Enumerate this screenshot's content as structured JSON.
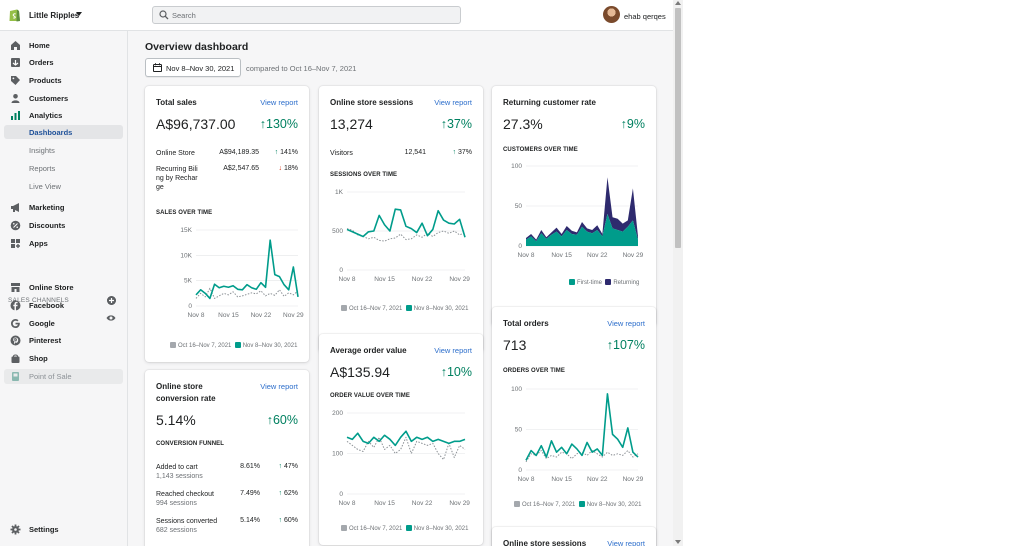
{
  "topbar": {
    "store_name": "Little Ripples",
    "search_placeholder": "Search",
    "user_name": "ehab qerqes"
  },
  "sidebar": {
    "items": [
      {
        "label": "Home",
        "icon": "home-icon"
      },
      {
        "label": "Orders",
        "icon": "orders-icon"
      },
      {
        "label": "Products",
        "icon": "tag-icon"
      },
      {
        "label": "Customers",
        "icon": "person-icon"
      },
      {
        "label": "Analytics",
        "icon": "bar-chart-icon"
      }
    ],
    "analytics_sub": [
      "Dashboards",
      "Insights",
      "Reports",
      "Live View"
    ],
    "items2": [
      {
        "label": "Marketing",
        "icon": "megaphone-icon"
      },
      {
        "label": "Discounts",
        "icon": "discount-icon"
      },
      {
        "label": "Apps",
        "icon": "apps-icon"
      }
    ],
    "channels_head": "SALES CHANNELS",
    "channels": [
      "Online Store",
      "Facebook",
      "Google",
      "Pinterest",
      "Shop",
      "Point of Sale"
    ],
    "settings": "Settings"
  },
  "main": {
    "title": "Overview dashboard",
    "date_range": "Nov 8–Nov 30, 2021",
    "compared": "compared to Oct 16–Nov 7, 2021",
    "view_report": "View report",
    "legend_prev": "Oct 16–Nov 7, 2021",
    "legend_curr": "Nov 8–Nov 30, 2021"
  },
  "colors": {
    "accent": "#008060",
    "teal": "#009c8b",
    "navy": "#2e2a6e",
    "link": "#2c6ecb",
    "down": "#d72c0d",
    "dotted": "#8c9196"
  },
  "cards": {
    "total_sales": {
      "title": "Total sales",
      "value": "A$96,737.00",
      "change": "130%",
      "rows": [
        {
          "label": "Online Store",
          "value": "A$94,189.35",
          "change": "141%",
          "dir": "up"
        },
        {
          "label": "Recurring Bili ng by Rechar ge",
          "value": "A$2,547.65",
          "change": "18%",
          "dir": "down"
        }
      ],
      "chart_title": "SALES OVER TIME"
    },
    "sessions": {
      "title": "Online store sessions",
      "value": "13,274",
      "change": "37%",
      "rows": [
        {
          "label": "Visitors",
          "value": "12,541",
          "change": "37%"
        }
      ],
      "chart_title": "SESSIONS OVER TIME"
    },
    "returning": {
      "title": "Returning customer rate",
      "value": "27.3%",
      "change": "9%",
      "chart_title": "CUSTOMERS OVER TIME",
      "legend_first": "First-time",
      "legend_returning": "Returning"
    },
    "conversion": {
      "title": "Online store conversion rate",
      "value": "5.14%",
      "change": "60%",
      "funnel_title": "CONVERSION FUNNEL",
      "rows": [
        {
          "label": "Added to cart",
          "sub": "1,143 sessions",
          "value": "8.61%",
          "change": "47%"
        },
        {
          "label": "Reached checkout",
          "sub": "994 sessions",
          "value": "7.49%",
          "change": "62%"
        },
        {
          "label": "Sessions converted",
          "sub": "682 sessions",
          "value": "5.14%",
          "change": "60%"
        }
      ]
    },
    "aov": {
      "title": "Average order value",
      "value": "A$135.94",
      "change": "10%",
      "chart_title": "ORDER VALUE OVER TIME"
    },
    "orders": {
      "title": "Total orders",
      "value": "713",
      "change": "107%",
      "chart_title": "ORDERS OVER TIME"
    },
    "sessions2": {
      "title": "Online store sessions"
    }
  },
  "chart_data": [
    {
      "type": "line",
      "title": "SALES OVER TIME",
      "x_ticks": [
        "Nov 8",
        "Nov 15",
        "Nov 22",
        "Nov 29"
      ],
      "y_ticks": [
        "0",
        "5K",
        "10K",
        "15K"
      ],
      "ylim": [
        0,
        15000
      ],
      "series": [
        {
          "name": "Oct 16–Nov 7, 2021",
          "style": "dotted",
          "values": [
            1500,
            2500,
            1800,
            3500,
            1500,
            2000,
            2500,
            2200,
            2800,
            1800,
            2000,
            2300,
            2600,
            2400,
            3000,
            2000,
            2500,
            2100,
            3200,
            1900,
            2600,
            2200,
            3000
          ]
        },
        {
          "name": "Nov 8–Nov 30, 2021",
          "style": "solid",
          "values": [
            2200,
            3200,
            2500,
            1500,
            4300,
            3600,
            3900,
            3700,
            4000,
            3300,
            3200,
            4200,
            3600,
            3300,
            4600,
            3700,
            13000,
            6200,
            5800,
            4200,
            3200,
            7700,
            1800
          ]
        }
      ]
    },
    {
      "type": "line",
      "title": "SESSIONS OVER TIME",
      "x_ticks": [
        "Nov 8",
        "Nov 15",
        "Nov 22",
        "Nov 29"
      ],
      "y_ticks": [
        "0",
        "500",
        "1K"
      ],
      "ylim": [
        0,
        1000
      ],
      "series": [
        {
          "name": "Oct 16–Nov 7, 2021",
          "style": "dotted",
          "values": [
            530,
            510,
            450,
            430,
            400,
            420,
            380,
            370,
            400,
            410,
            460,
            390,
            400,
            450,
            420,
            470,
            430,
            480,
            500,
            470,
            500,
            450,
            480
          ]
        },
        {
          "name": "Nov 8–Nov 30, 2021",
          "style": "solid",
          "values": [
            520,
            490,
            460,
            430,
            490,
            500,
            700,
            580,
            500,
            780,
            770,
            560,
            530,
            480,
            600,
            440,
            520,
            760,
            640,
            600,
            590,
            650,
            420
          ]
        }
      ]
    },
    {
      "type": "area",
      "title": "CUSTOMERS OVER TIME",
      "x_ticks": [
        "Nov 8",
        "Nov 15",
        "Nov 22",
        "Nov 29"
      ],
      "y_ticks": [
        "0",
        "50",
        "100"
      ],
      "ylim": [
        0,
        100
      ],
      "series": [
        {
          "name": "First-time",
          "values": [
            8,
            12,
            6,
            16,
            9,
            14,
            18,
            12,
            20,
            15,
            14,
            24,
            18,
            16,
            20,
            12,
            40,
            22,
            20,
            18,
            24,
            32,
            8
          ]
        },
        {
          "name": "Returning",
          "values": [
            2,
            3,
            2,
            4,
            2,
            3,
            5,
            3,
            5,
            4,
            3,
            6,
            4,
            4,
            6,
            3,
            46,
            14,
            14,
            10,
            8,
            40,
            4
          ]
        }
      ]
    },
    {
      "type": "line",
      "title": "ORDER VALUE OVER TIME",
      "x_ticks": [
        "Nov 8",
        "Nov 15",
        "Nov 22",
        "Nov 29"
      ],
      "y_ticks": [
        "0",
        "100",
        "200"
      ],
      "ylim": [
        0,
        200
      ],
      "series": [
        {
          "name": "Oct 16–Nov 7, 2021",
          "style": "dotted",
          "values": [
            130,
            120,
            110,
            105,
            130,
            115,
            140,
            110,
            120,
            100,
            110,
            140,
            100,
            130,
            125,
            120,
            125,
            100,
            85,
            125,
            90,
            120,
            110
          ]
        },
        {
          "name": "Nov 8–Nov 30, 2021",
          "style": "solid",
          "values": [
            140,
            135,
            150,
            130,
            125,
            140,
            130,
            145,
            135,
            120,
            140,
            155,
            130,
            140,
            135,
            140,
            130,
            135,
            130,
            125,
            130,
            130,
            135
          ]
        }
      ]
    },
    {
      "type": "line",
      "title": "ORDERS OVER TIME",
      "x_ticks": [
        "Nov 8",
        "Nov 15",
        "Nov 22",
        "Nov 29"
      ],
      "y_ticks": [
        "0",
        "50",
        "100"
      ],
      "ylim": [
        0,
        100
      ],
      "series": [
        {
          "name": "Oct 16–Nov 7, 2021",
          "style": "dotted",
          "values": [
            10,
            20,
            18,
            24,
            14,
            18,
            16,
            22,
            20,
            14,
            20,
            22,
            18,
            24,
            20,
            16,
            22,
            18,
            20,
            18,
            24,
            16,
            20
          ]
        },
        {
          "name": "Nov 8–Nov 30, 2021",
          "style": "solid",
          "values": [
            12,
            24,
            18,
            30,
            16,
            36,
            22,
            28,
            20,
            32,
            26,
            18,
            34,
            22,
            26,
            18,
            94,
            44,
            38,
            28,
            52,
            22,
            16
          ]
        }
      ]
    }
  ]
}
